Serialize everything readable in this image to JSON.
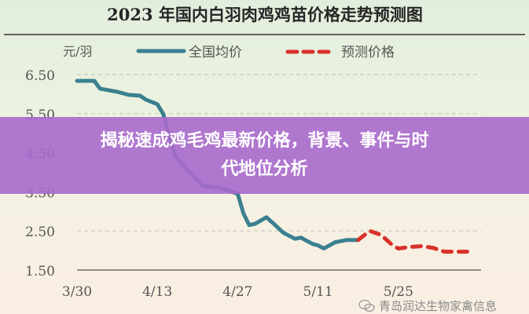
{
  "chart_data": {
    "type": "line",
    "title": "2023 年国内白羽肉鸡鸡苗价格走势预测图",
    "ylabel": "元/羽",
    "ylim": [
      1.5,
      6.5
    ],
    "yticks": [
      "6.50",
      "5.50",
      "4.50",
      "3.50",
      "2.50",
      "1.50"
    ],
    "xticks": [
      "3/30",
      "4/13",
      "4/27",
      "5/11",
      "5/25"
    ],
    "grid": true,
    "legend_placement": "top",
    "series": [
      {
        "name": "全国均价",
        "color": "#3a8090",
        "style": "solid",
        "x": [
          "3/30",
          "4/2",
          "4/3",
          "4/6",
          "4/8",
          "4/10",
          "4/11",
          "4/13",
          "4/14",
          "4/16",
          "4/18",
          "4/21",
          "4/24",
          "4/27",
          "4/28",
          "4/29",
          "4/30",
          "5/2",
          "5/3",
          "5/5",
          "5/7",
          "5/8",
          "5/10",
          "5/11",
          "5/12",
          "5/14",
          "5/16",
          "5/18"
        ],
        "values": [
          6.34,
          6.34,
          6.14,
          6.06,
          5.98,
          5.96,
          5.86,
          5.74,
          5.5,
          4.45,
          4.1,
          3.65,
          3.6,
          3.45,
          2.95,
          2.65,
          2.68,
          2.85,
          2.72,
          2.45,
          2.3,
          2.33,
          2.17,
          2.13,
          2.05,
          2.21,
          2.27,
          2.27
        ]
      },
      {
        "name": "预测价格",
        "color": "#d9302a",
        "style": "dashed",
        "x": [
          "5/18",
          "5/20",
          "5/22",
          "5/24",
          "5/25",
          "5/27",
          "5/29",
          "5/31",
          "6/2",
          "6/6"
        ],
        "values": [
          2.27,
          2.5,
          2.4,
          2.13,
          2.05,
          2.09,
          2.11,
          2.07,
          1.97,
          1.97
        ]
      }
    ]
  },
  "banner": {
    "line1": "揭秘速成鸡毛鸡最新价格，背景、事件与时",
    "line2": "代地位分析",
    "color": "#a869cd"
  },
  "watermark": {
    "icon": "wechat-icon",
    "text": "青岛润达生物家禽信息"
  }
}
